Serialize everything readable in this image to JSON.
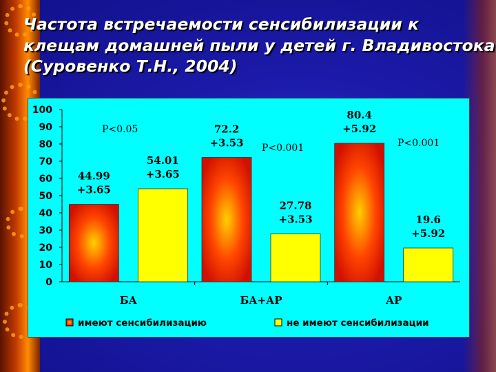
{
  "title_lines": [
    "Частота встречаемости сенсибилизации к",
    "клещам домашней пыли  у детей г. Владивостока",
    "(Суровенко Т.Н., 2004)"
  ],
  "colors": {
    "series1": "#ff2200",
    "series1_center": "#ffd000",
    "series2": "#ffff00",
    "panel": "#00ffff"
  },
  "chart_data": {
    "type": "bar",
    "categories": [
      "БА",
      "БА+АР",
      "АР"
    ],
    "series": [
      {
        "name": "имеют сенсибилизацию",
        "values": [
          44.99,
          72.2,
          80.4
        ],
        "errors": [
          3.65,
          3.53,
          5.92
        ]
      },
      {
        "name": "не имеют сенсибилизации",
        "values": [
          54.01,
          27.78,
          19.6
        ],
        "errors": [
          3.65,
          3.53,
          5.92
        ]
      }
    ],
    "bar_labels": [
      [
        [
          "44.99",
          "+3.65"
        ],
        [
          "72.2",
          "+3.53"
        ],
        [
          "80.4",
          "+5.92"
        ]
      ],
      [
        [
          "54.01",
          "+3.65"
        ],
        [
          "27.78",
          "+3.53"
        ],
        [
          "19.6",
          "+5.92"
        ]
      ]
    ],
    "p_values": [
      "P<0.05",
      "P<0.001",
      "P<0.001"
    ],
    "ylim": [
      0,
      100
    ],
    "yticks": [
      0,
      10,
      20,
      30,
      40,
      50,
      60,
      70,
      80,
      90,
      100
    ],
    "legend_position": "bottom",
    "grid": false
  }
}
